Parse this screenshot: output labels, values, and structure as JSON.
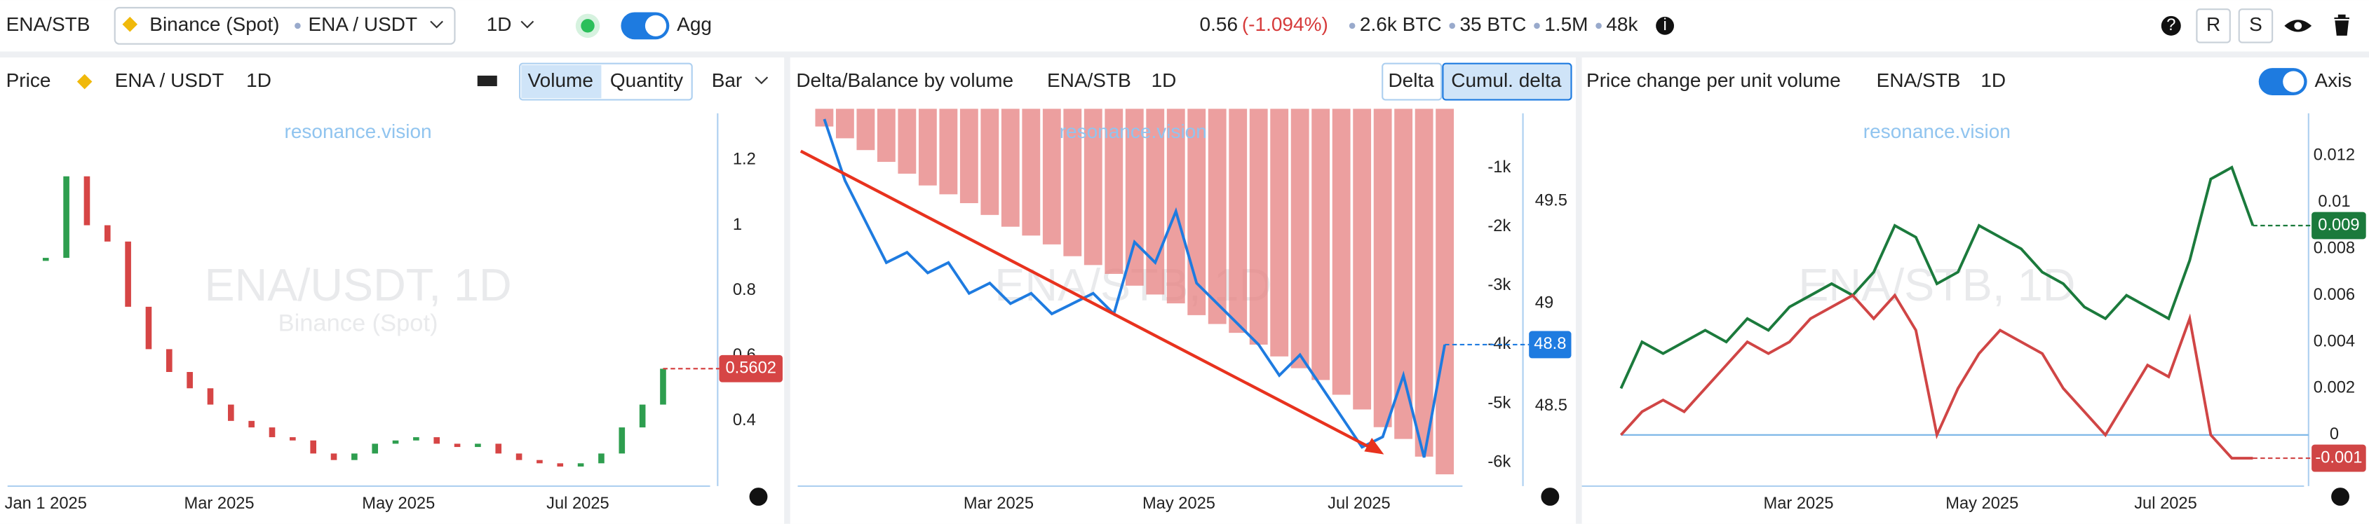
{
  "toolbar": {
    "symbol": "ENA/STB",
    "exchange": "Binance (Spot)",
    "pair": "ENA / USDT",
    "interval": "1D",
    "agg": "Agg",
    "price": "0.56",
    "change": "(-1.094%)",
    "stats": [
      "2.6k BTC",
      "35 BTC",
      "1.5M",
      "48k"
    ],
    "buttons": [
      "R",
      "S"
    ]
  },
  "panels": [
    {
      "title": "Price",
      "pair": "ENA / USDT",
      "interval": "1D",
      "modes": [
        "Volume",
        "Quantity"
      ],
      "chart_type": "Bar",
      "watermark": "resonance.vision",
      "watermark_big": "ENA/USDT, 1D",
      "watermark_sub": "Binance (Spot)",
      "chart": {
        "type": "bar",
        "x": [
          0,
          7,
          14,
          21,
          28,
          35,
          42,
          49,
          56,
          63,
          70,
          77,
          84,
          91,
          98,
          105,
          112,
          119,
          126,
          133,
          140,
          147,
          154,
          161,
          168,
          175,
          182,
          189,
          196,
          203,
          210
        ],
        "values": [
          0.9,
          1.15,
          1.0,
          0.95,
          0.75,
          0.62,
          0.55,
          0.5,
          0.45,
          0.4,
          0.38,
          0.35,
          0.34,
          0.3,
          0.28,
          0.3,
          0.33,
          0.34,
          0.35,
          0.33,
          0.32,
          0.33,
          0.3,
          0.28,
          0.27,
          0.26,
          0.27,
          0.3,
          0.38,
          0.45,
          0.56
        ],
        "xlim": [
          -13,
          226
        ],
        "xticks": [
          {
            "value": 0,
            "label": "Jan 1 2025"
          },
          {
            "value": 59,
            "label": "Mar 2025"
          },
          {
            "value": 120,
            "label": "May 2025"
          },
          {
            "value": 181,
            "label": "Jul 2025"
          }
        ],
        "ylim": [
          0.2,
          1.32
        ],
        "yticks": [
          0.4,
          0.6,
          0.8,
          1,
          1.2
        ],
        "last": 0.5602,
        "last_label": "0.5602"
      }
    },
    {
      "title": "Delta/Balance by volume",
      "pair": "ENA/STB",
      "interval": "1D",
      "modes": [
        "Delta",
        "Cumul. delta"
      ],
      "watermark": "resonance.vision",
      "watermark_big": "ENA/STB, 1D",
      "chart": {
        "x": [
          0,
          7,
          14,
          21,
          28,
          35,
          42,
          49,
          56,
          63,
          70,
          77,
          84,
          91,
          98,
          105,
          112,
          119,
          126,
          133,
          140,
          147,
          154,
          161,
          168,
          175,
          182,
          189,
          196,
          203,
          210
        ],
        "xlim": [
          -9,
          216
        ],
        "xticks": [
          {
            "value": 59,
            "label": "Mar 2025"
          },
          {
            "value": 120,
            "label": "May 2025"
          },
          {
            "value": 181,
            "label": "Jul 2025"
          }
        ],
        "series": [
          {
            "name": "Cumul. delta",
            "type": "bar",
            "color": "#e57f7f",
            "values": [
              -300,
              -500,
              -700,
              -900,
              -1100,
              -1300,
              -1450,
              -1600,
              -1800,
              -2000,
              -2150,
              -2300,
              -2500,
              -2650,
              -2800,
              -3000,
              -3150,
              -3300,
              -3500,
              -3650,
              -3800,
              -4000,
              -4200,
              -4400,
              -4600,
              -4850,
              -5100,
              -5400,
              -5600,
              -5900,
              -6200
            ]
          },
          {
            "name": "Balance",
            "type": "line",
            "axis": "y2",
            "color": "#1e7be0",
            "values": [
              49.9,
              49.6,
              49.4,
              49.2,
              49.25,
              49.15,
              49.2,
              49.05,
              49.1,
              49.0,
              49.05,
              48.95,
              49.0,
              49.05,
              48.95,
              49.3,
              49.2,
              49.45,
              49.1,
              49.0,
              48.9,
              48.8,
              48.65,
              48.75,
              48.6,
              48.45,
              48.3,
              48.35,
              48.65,
              48.25,
              48.8
            ]
          }
        ],
        "ylim": [
          -6400,
          0
        ],
        "yticks": [
          {
            "value": -1000,
            "label": "-1k"
          },
          {
            "value": -2000,
            "label": "-2k"
          },
          {
            "value": -3000,
            "label": "-3k"
          },
          {
            "value": -4000,
            "label": "-4k"
          },
          {
            "value": -5000,
            "label": "-5k"
          },
          {
            "value": -6000,
            "label": "-6k"
          }
        ],
        "y2lim": [
          48.11,
          49.95
        ],
        "y2ticks": [
          48.5,
          49,
          49.5
        ],
        "last": 48.8,
        "last_label": "48.8"
      }
    },
    {
      "title": "Price change per unit volume",
      "pair": "ENA/STB",
      "interval": "1D",
      "toggle": "Axis",
      "watermark": "resonance.vision",
      "watermark_big": "ENA/STB, 1D",
      "chart": {
        "type": "line",
        "x": [
          0,
          7,
          14,
          21,
          28,
          35,
          42,
          49,
          56,
          63,
          70,
          77,
          84,
          91,
          98,
          105,
          112,
          119,
          126,
          133,
          140,
          147,
          154,
          161,
          168,
          175,
          182,
          189,
          196,
          203,
          210
        ],
        "xlim": [
          -13,
          227
        ],
        "xticks": [
          {
            "value": 59,
            "label": "Mar 2025"
          },
          {
            "value": 120,
            "label": "May 2025"
          },
          {
            "value": 181,
            "label": "Jul 2025"
          }
        ],
        "ylim": [
          -0.0022,
          0.0135
        ],
        "yticks": [
          0,
          0.002,
          0.004,
          0.006,
          0.008,
          0.01,
          0.012
        ],
        "series": [
          {
            "color": "#1b7a3c",
            "values": [
              0.002,
              0.004,
              0.0035,
              0.004,
              0.0045,
              0.004,
              0.005,
              0.0045,
              0.0055,
              0.006,
              0.0065,
              0.006,
              0.007,
              0.009,
              0.0085,
              0.0065,
              0.007,
              0.009,
              0.0085,
              0.008,
              0.007,
              0.0065,
              0.0055,
              0.005,
              0.006,
              0.0055,
              0.005,
              0.0075,
              0.011,
              0.0115,
              0.009
            ],
            "last_label": "0.009"
          },
          {
            "color": "#d04545",
            "values": [
              0,
              0.001,
              0.0015,
              0.001,
              0.002,
              0.003,
              0.004,
              0.0035,
              0.004,
              0.005,
              0.0055,
              0.006,
              0.005,
              0.006,
              0.0045,
              0,
              0.002,
              0.0035,
              0.0045,
              0.004,
              0.0035,
              0.002,
              0.001,
              0,
              0.0015,
              0.003,
              0.0025,
              0.005,
              0,
              -0.001,
              -0.001
            ],
            "last_label": "-0.001"
          }
        ]
      }
    }
  ]
}
